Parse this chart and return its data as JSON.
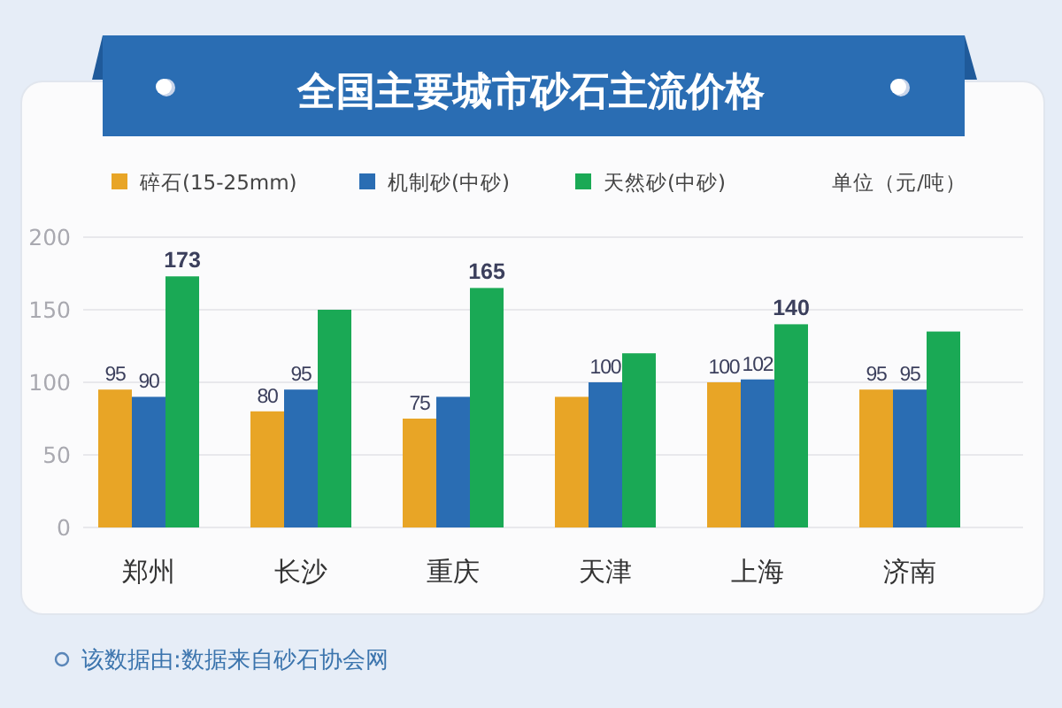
{
  "chart_data": {
    "type": "bar",
    "title": "全国主要城市砂石主流价格",
    "ylabel": "单位（元/吨）",
    "categories": [
      "郑州",
      "长沙",
      "重庆",
      "天津",
      "上海",
      "济南"
    ],
    "series": [
      {
        "name": "碎石(15-25mm)",
        "color": "#e8a526",
        "values": [
          95,
          80,
          75,
          90,
          100,
          95
        ],
        "value_labels": [
          "95",
          "80",
          "75",
          null,
          "100",
          "95"
        ]
      },
      {
        "name": "机制砂(中砂)",
        "color": "#2a6db3",
        "values": [
          90,
          95,
          90,
          100,
          102,
          95
        ],
        "value_labels": [
          "90",
          "95",
          null,
          "100",
          "102",
          "95"
        ]
      },
      {
        "name": "天然砂(中砂)",
        "color": "#1aa955",
        "values": [
          173,
          150,
          165,
          120,
          140,
          135
        ],
        "value_labels": [
          "173",
          null,
          "165",
          null,
          "140",
          null
        ]
      }
    ],
    "ylim": [
      0,
      200
    ],
    "yticks": [
      0,
      50,
      100,
      150,
      200
    ],
    "grid": "y",
    "legend": "top",
    "annotations": [
      "该数据由:数据来自砂石协会网"
    ]
  }
}
